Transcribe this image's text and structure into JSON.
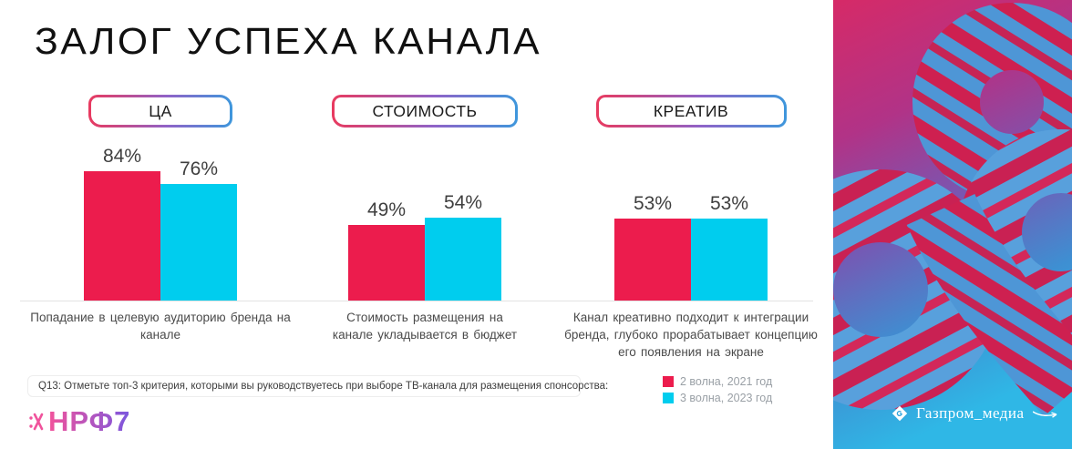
{
  "title": "ЗАЛОГ УСПЕХА КАНАЛА",
  "colors": {
    "wave1_red": "#EC1C4D",
    "wave2_cyan": "#00CDEE",
    "badge_gradient_left": "#E93A5F",
    "badge_gradient_right": "#3E97DC",
    "nrf_gradient_left": "#F2539B",
    "nrf_gradient_right": "#7A57DF"
  },
  "chart_data": {
    "type": "bar",
    "unit": "%",
    "ylim": [
      0,
      100
    ],
    "grid": false,
    "legend_position": "bottom-right",
    "series": [
      {
        "name": "2 волна, 2021 год",
        "color": "#EC1C4D"
      },
      {
        "name": "3 волна, 2023 год",
        "color": "#00CDEE"
      }
    ],
    "groups": [
      {
        "badge": "ЦА",
        "values": [
          84,
          76
        ],
        "labels": [
          "84%",
          "76%"
        ],
        "caption": "Попадание в целевую аудиторию бренда на канале"
      },
      {
        "badge": "СТОИМОСТЬ",
        "values": [
          49,
          54
        ],
        "labels": [
          "49%",
          "54%"
        ],
        "caption": "Стоимость размещения на канале укладывается в бюджет"
      },
      {
        "badge": "КРЕАТИВ",
        "values": [
          53,
          53
        ],
        "labels": [
          "53%",
          "53%"
        ],
        "caption": "Канал креативно подходит к интеграции бренда, глубоко прорабатывает концепцию его появления на экране"
      }
    ]
  },
  "footnote": "Q13: Отметьте топ-3 критерия, которыми вы руководствуетесь при выборе ТВ-канала для размещения спонсорства:",
  "footer": {
    "nrf_logo": "НРФ7",
    "gazprom_logo": "Газпром_медиа"
  }
}
